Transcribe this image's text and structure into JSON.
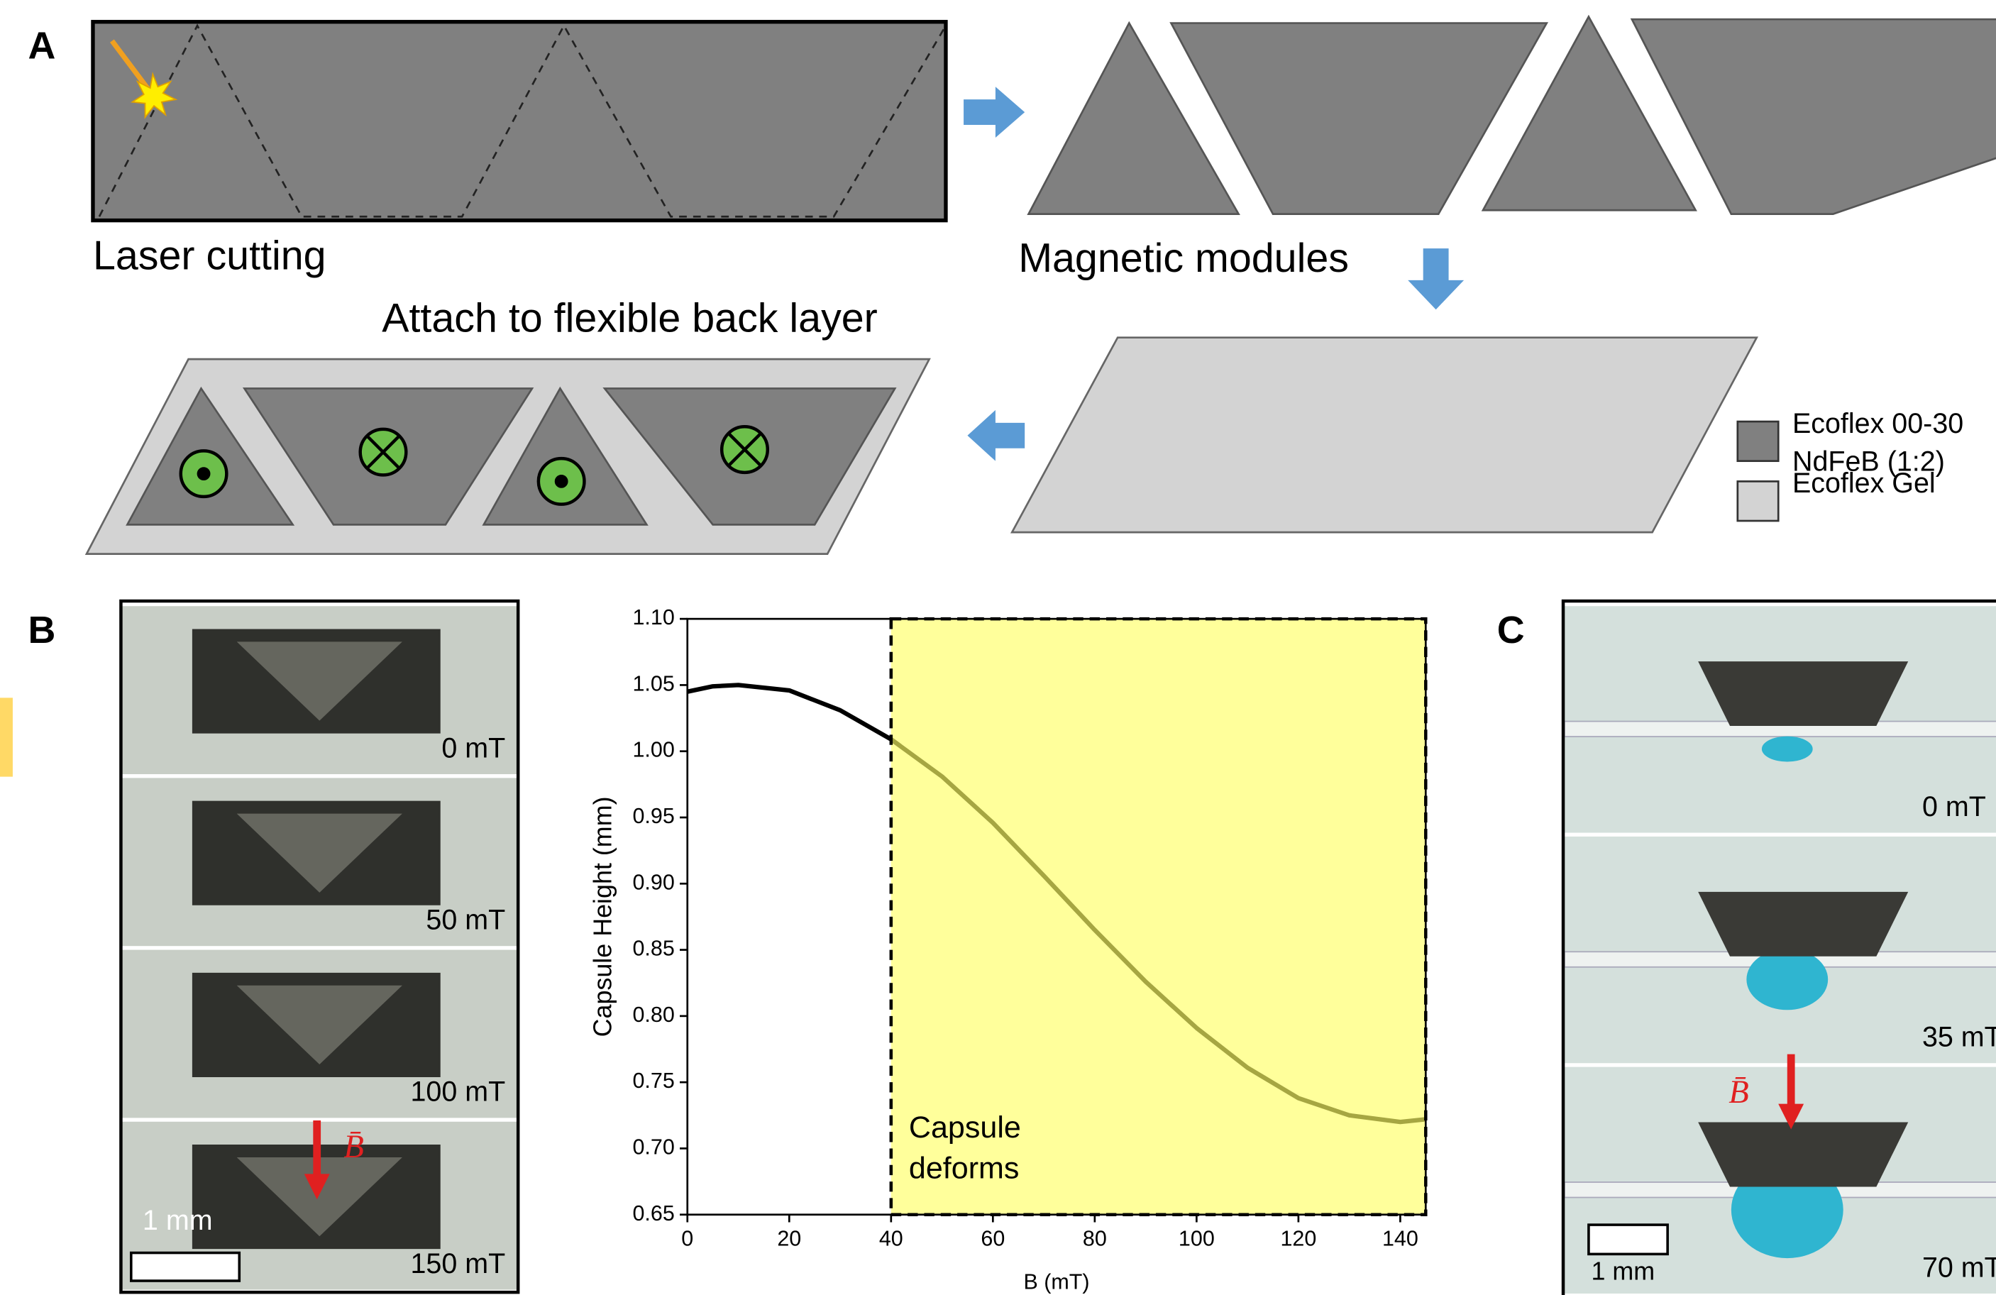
{
  "panel_a": {
    "label": "A",
    "steps": [
      "Laser cutting",
      "Magnetic modules",
      "Attach to flexible back layer"
    ],
    "legend": [
      {
        "lines": [
          "Ecoflex 00-30",
          "NdFeB (1:2)"
        ],
        "color": "#808080"
      },
      {
        "lines": [
          "Ecoflex Gel"
        ],
        "color": "#d3d3d3"
      }
    ]
  },
  "panel_b": {
    "label": "B",
    "photo_labels": [
      "0 mT",
      "50 mT",
      "100 mT",
      "150 mT"
    ],
    "field_symbol": "B̄",
    "scale_bar": "1 mm"
  },
  "chart_data": {
    "type": "line",
    "x_label": "B (mT)",
    "y_label": "Capsule Height (mm)",
    "x": [
      0,
      5,
      10,
      20,
      30,
      40,
      50,
      60,
      70,
      80,
      90,
      100,
      110,
      120,
      130,
      140,
      145
    ],
    "series": [
      {
        "color": "#000000",
        "values": [
          1.045,
          1.049,
          1.05,
          1.046,
          1.031,
          1.009,
          0.981,
          0.946,
          0.906,
          0.865,
          0.826,
          0.791,
          0.761,
          0.738,
          0.725,
          0.72,
          0.722
        ]
      }
    ],
    "xlim": [
      0,
      145
    ],
    "xticks": [
      0,
      20,
      40,
      60,
      80,
      100,
      120,
      140
    ],
    "ylim": [
      0.65,
      1.1
    ],
    "yticks": [
      0.65,
      {
        "value": 0.7,
        "label": "0.70"
      },
      0.75,
      {
        "value": 0.8,
        "label": "0.80"
      },
      0.85,
      {
        "value": 0.9,
        "label": "0.90"
      },
      0.95,
      {
        "value": 1.0,
        "label": "1.00"
      },
      1.05,
      {
        "value": 1.1,
        "label": "1.10"
      }
    ],
    "shaded_region": {
      "x": [
        40,
        145
      ],
      "color": "#ffff66"
    },
    "annotation": [
      "Capsule",
      "deforms"
    ]
  },
  "panel_c": {
    "label": "C",
    "photo_labels": [
      "0 mT",
      "35 mT",
      "70 mT"
    ],
    "field_symbol": "B̄",
    "scale_bar": "1 mm"
  }
}
